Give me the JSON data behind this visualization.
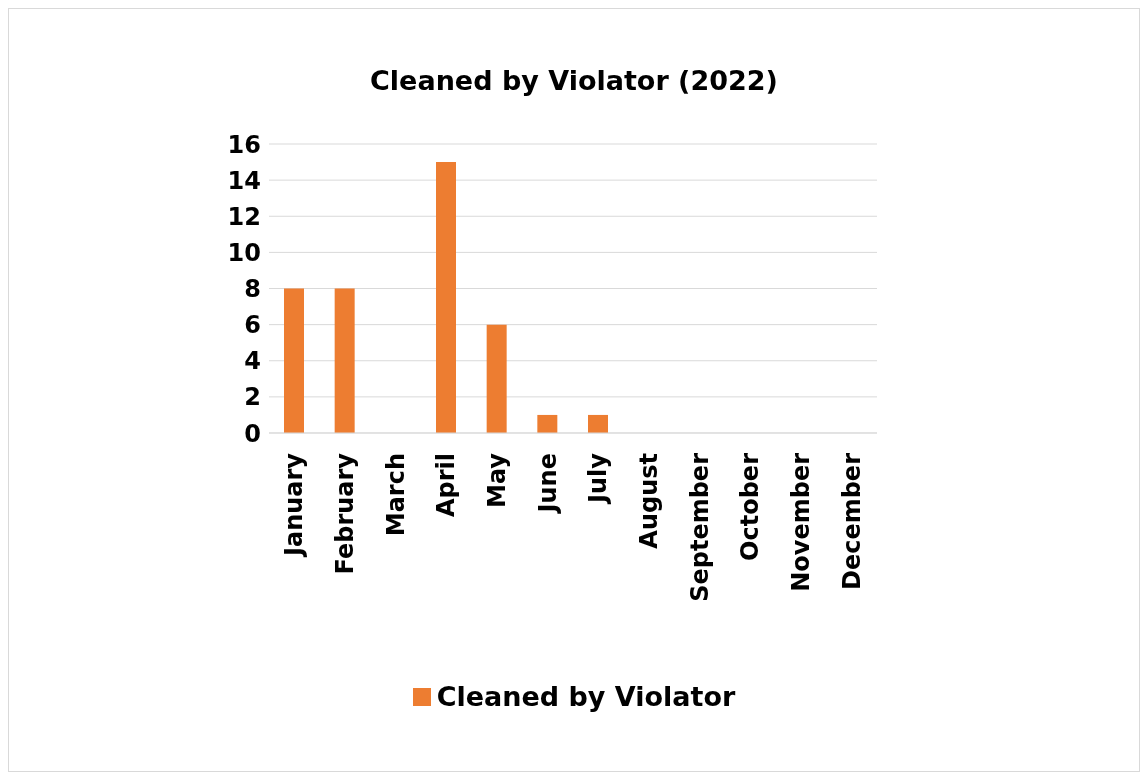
{
  "chart_data": {
    "type": "bar",
    "title": "Cleaned by Violator (2022)",
    "categories": [
      "January",
      "February",
      "March",
      "April",
      "May",
      "June",
      "July",
      "August",
      "September",
      "October",
      "November",
      "December"
    ],
    "series": [
      {
        "name": "Cleaned by Violator",
        "color": "#ed7d31",
        "values": [
          8,
          8,
          0,
          15,
          6,
          1,
          1,
          0,
          0,
          0,
          0,
          0
        ]
      }
    ],
    "ylim": [
      0,
      16
    ],
    "yticks": [
      0,
      2,
      4,
      6,
      8,
      10,
      12,
      14,
      16
    ],
    "grid": "y",
    "legend": "bottom"
  }
}
